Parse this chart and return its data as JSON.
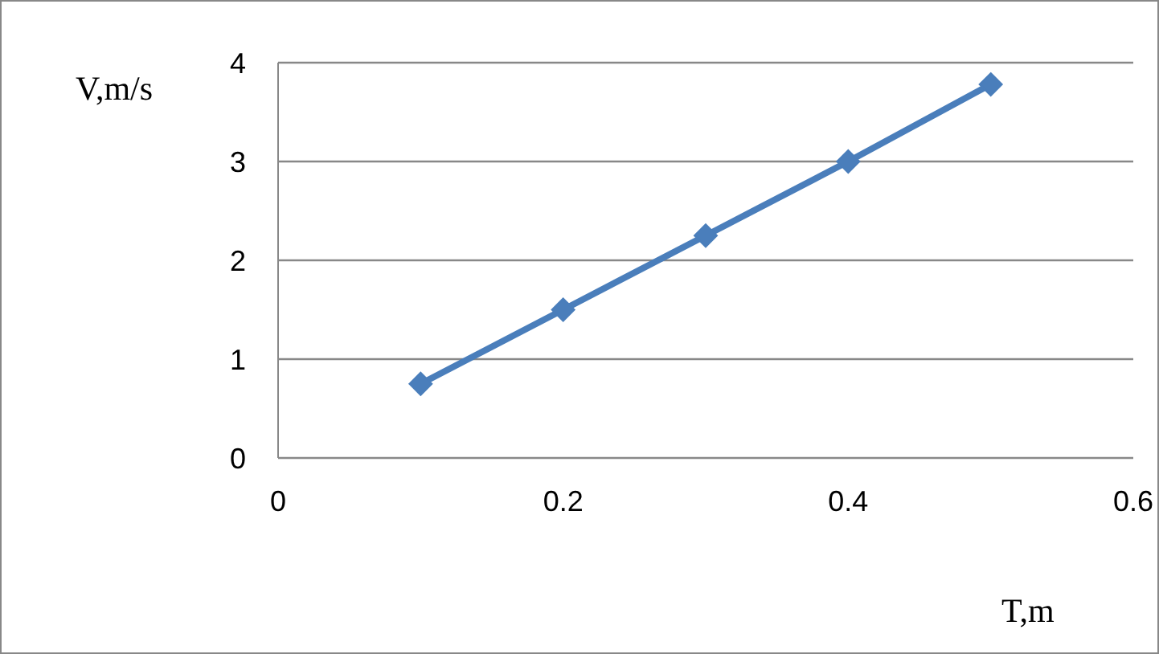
{
  "chart_data": {
    "type": "line",
    "xlabel": "T,m",
    "ylabel": "V,m/s",
    "x": [
      0.1,
      0.2,
      0.3,
      0.4,
      0.5
    ],
    "series": [
      {
        "color": "#4a7ebb",
        "values": [
          0.75,
          1.5,
          2.25,
          3.0,
          3.78
        ]
      }
    ],
    "xlim": [
      0,
      0.6
    ],
    "xticks": [
      0,
      0.2,
      0.4,
      0.6
    ],
    "ylim": [
      0,
      4
    ],
    "yticks": [
      0,
      1,
      2,
      3,
      4
    ],
    "grid": "y",
    "marker": "diamond",
    "line_style": "solid"
  }
}
